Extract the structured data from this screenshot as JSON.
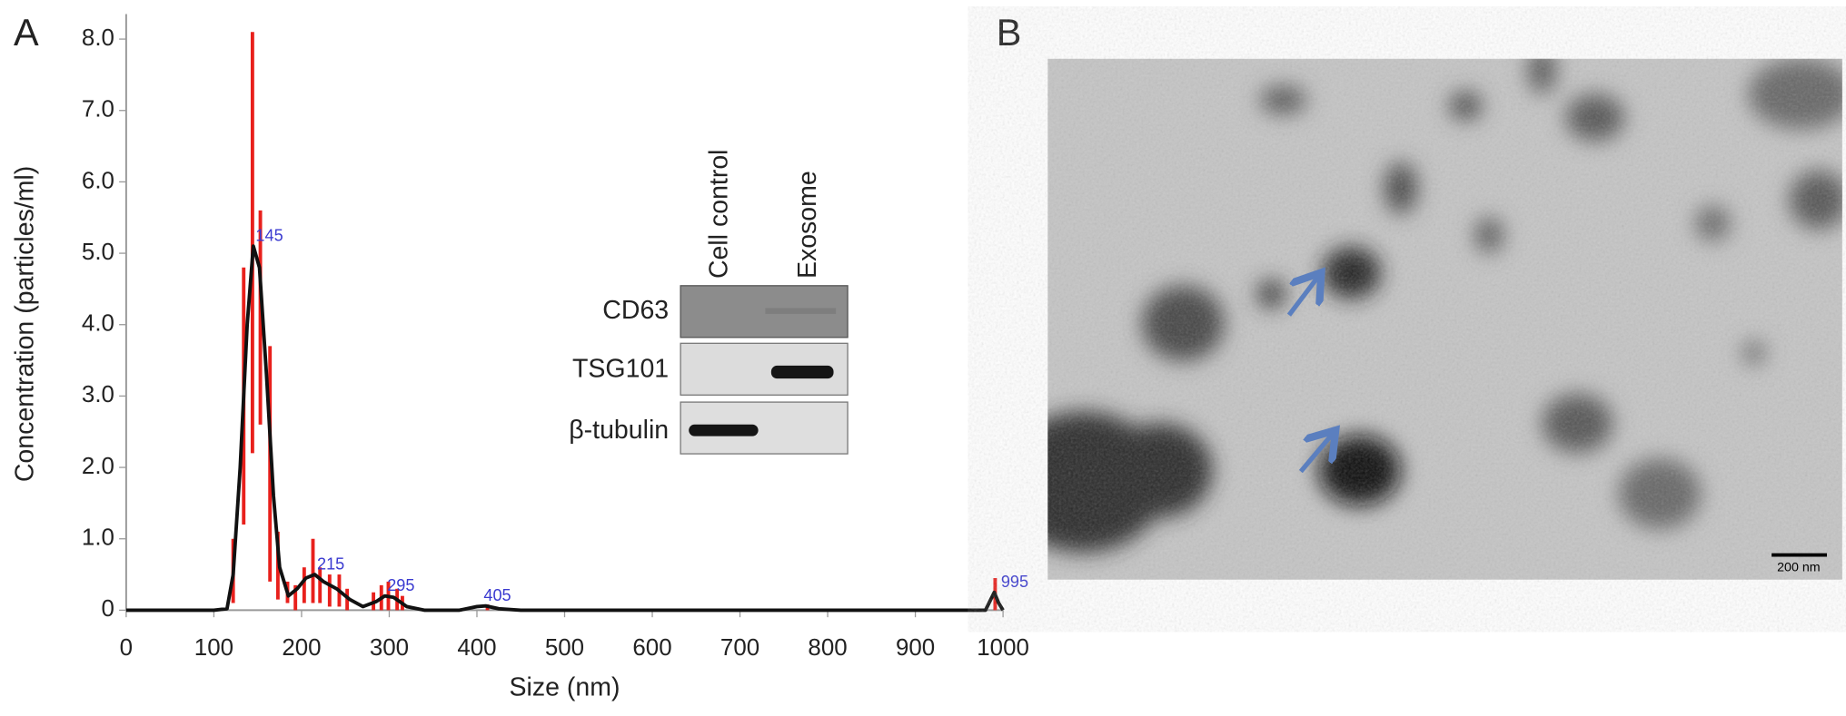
{
  "panels": {
    "a": "A",
    "b": "B"
  },
  "chart_data": {
    "type": "line",
    "x_label": "Size (nm)",
    "y_label": "Concentration (particles/ml)",
    "xlim": [
      0,
      1000
    ],
    "ylim": [
      0,
      8.35
    ],
    "xticks": [
      0,
      100,
      200,
      300,
      400,
      500,
      600,
      700,
      800,
      900,
      1000
    ],
    "yticks": [
      0,
      {
        "value": 1,
        "label": "1.0"
      },
      {
        "value": 2,
        "label": "2.0"
      },
      {
        "value": 3,
        "label": "3.0"
      },
      {
        "value": 4,
        "label": "4.0"
      },
      {
        "value": 5,
        "label": "5.0"
      },
      {
        "value": 6,
        "label": "6.0"
      },
      {
        "value": 7,
        "label": "7.0"
      },
      {
        "value": 8,
        "label": "8.0"
      }
    ],
    "curve": {
      "color": "#111111",
      "x": [
        0,
        100,
        115,
        122,
        130,
        138,
        145,
        152,
        160,
        168,
        175,
        185,
        195,
        205,
        215,
        225,
        240,
        255,
        270,
        285,
        295,
        305,
        320,
        340,
        380,
        400,
        410,
        425,
        450,
        980,
        990,
        995,
        1000
      ],
      "values": [
        0,
        0,
        0.02,
        0.5,
        2.0,
        4.0,
        5.1,
        4.8,
        3.3,
        1.6,
        0.6,
        0.2,
        0.3,
        0.45,
        0.5,
        0.4,
        0.3,
        0.15,
        0.05,
        0.12,
        0.2,
        0.18,
        0.05,
        0,
        0,
        0.05,
        0.06,
        0.02,
        0,
        0,
        0.25,
        0.1,
        0
      ]
    },
    "bars": {
      "color": "#e8201c",
      "x": [
        122,
        134,
        144,
        153,
        164,
        173,
        184,
        193,
        203,
        213,
        221,
        232,
        243,
        252,
        282,
        291,
        299,
        309,
        315,
        412,
        991
      ],
      "low": [
        0.1,
        1.2,
        2.2,
        2.6,
        0.4,
        0.15,
        0.1,
        0,
        0.1,
        0.1,
        0.1,
        0.05,
        0.05,
        0,
        0,
        0,
        0,
        0,
        0,
        0,
        0
      ],
      "high": [
        1.0,
        4.8,
        8.1,
        5.6,
        3.7,
        1.1,
        0.4,
        0.35,
        0.6,
        1.0,
        0.6,
        0.5,
        0.5,
        0.3,
        0.25,
        0.35,
        0.4,
        0.3,
        0.2,
        0.08,
        0.45
      ]
    },
    "annotations": [
      {
        "label": "145",
        "x": 145,
        "y": 5.1
      },
      {
        "label": "215",
        "x": 215,
        "y": 0.5
      },
      {
        "label": "295",
        "x": 295,
        "y": 0.2
      },
      {
        "label": "405",
        "x": 405,
        "y": 0.06
      },
      {
        "label": "995",
        "x": 995,
        "y": 0.25
      }
    ]
  },
  "blot": {
    "columns": [
      "Cell control",
      "Exosome"
    ],
    "rows": [
      "CD63",
      "TSG101",
      "β-tubulin"
    ]
  },
  "micrograph": {
    "scale_bar": "200 nm"
  }
}
